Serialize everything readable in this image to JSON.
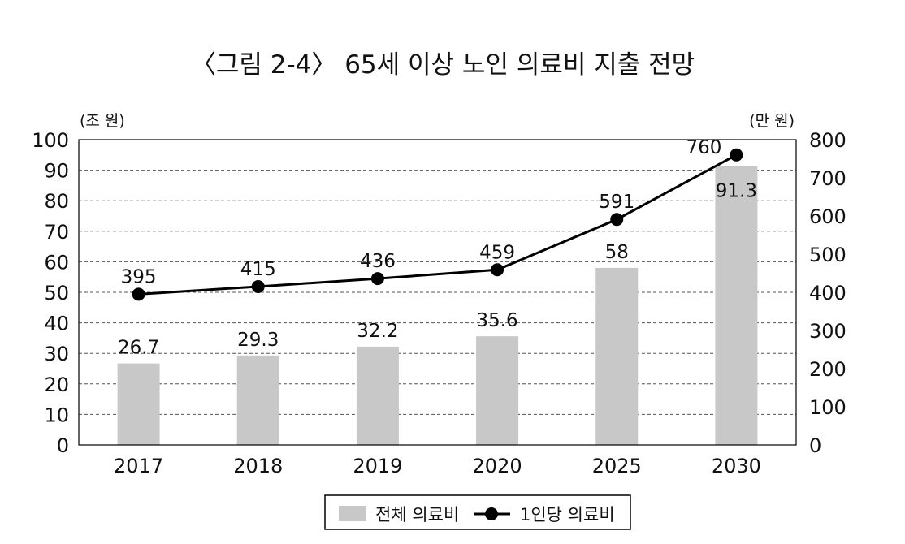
{
  "chart_data": {
    "type": "bar+line",
    "title": "〈그림 2-4〉 65세 이상 노인 의료비 지출 전망",
    "categories": [
      "2017",
      "2018",
      "2019",
      "2020",
      "2025",
      "2030"
    ],
    "series": [
      {
        "name": "전체 의료비",
        "type": "bar",
        "axis": "left",
        "values": [
          26.7,
          29.3,
          32.2,
          35.6,
          58,
          91.3
        ],
        "color": "#c8c8c8"
      },
      {
        "name": "1인당 의료비",
        "type": "line",
        "axis": "right",
        "values": [
          395,
          415,
          436,
          459,
          591,
          760
        ],
        "color": "#000000"
      }
    ],
    "y_left": {
      "unit_label": "(조 원)",
      "ylim": [
        0,
        100
      ],
      "ticks": [
        0,
        10,
        20,
        30,
        40,
        50,
        60,
        70,
        80,
        90,
        100
      ]
    },
    "y_right": {
      "unit_label": "(만 원)",
      "ylim": [
        0,
        800
      ],
      "ticks": [
        0,
        100,
        200,
        300,
        400,
        500,
        600,
        700,
        800
      ]
    },
    "grid": "horizontal dashed",
    "legend": "bottom-center"
  }
}
